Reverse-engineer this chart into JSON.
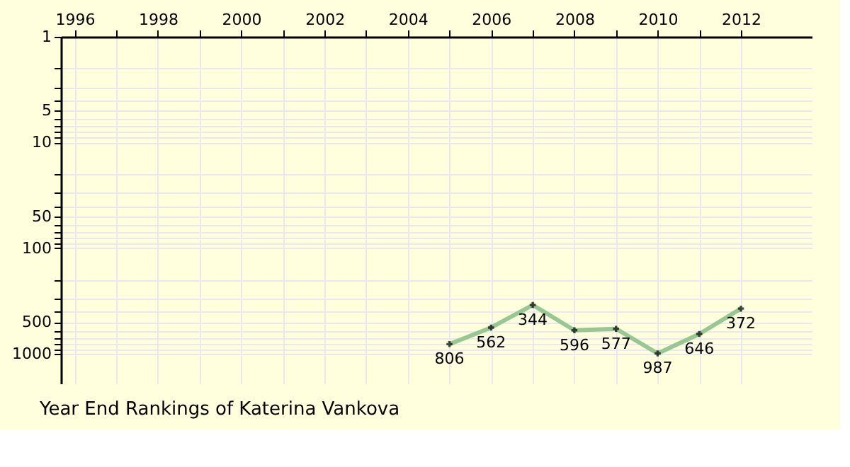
{
  "chart_data": {
    "type": "line",
    "title": "Year End Rankings of Katerina Vankova",
    "x": [
      2005,
      2006,
      2007,
      2008,
      2009,
      2010,
      2011,
      2012
    ],
    "series": [
      {
        "color": "#99c794",
        "values": [
          806,
          562,
          344,
          596,
          577,
          987,
          646,
          372
        ]
      }
    ],
    "data_labels": true,
    "marker": "cross",
    "line_style": "solid",
    "log": "y",
    "grid": true,
    "xlim": [
      1995.67,
      2013.7
    ],
    "ylim": [
      1900,
      1
    ],
    "xticks": [
      1996,
      {
        "value": 1997,
        "label": null
      },
      1998,
      {
        "value": 1999,
        "label": null
      },
      2000,
      {
        "value": 2001,
        "label": null
      },
      2002,
      {
        "value": 2003,
        "label": null
      },
      2004,
      {
        "value": 2005,
        "label": null
      },
      2006,
      {
        "value": 2007,
        "label": null
      },
      2008,
      {
        "value": 2009,
        "label": null
      },
      2010,
      {
        "value": 2011,
        "label": null
      },
      2012
    ],
    "yticks": [
      1,
      {
        "value": 2,
        "label": null
      },
      {
        "value": 3,
        "label": null
      },
      {
        "value": 4,
        "label": null
      },
      5,
      {
        "value": 6,
        "label": null
      },
      {
        "value": 7,
        "label": null
      },
      {
        "value": 8,
        "label": null
      },
      {
        "value": 9,
        "label": null
      },
      10,
      {
        "value": 20,
        "label": null
      },
      {
        "value": 30,
        "label": null
      },
      {
        "value": 40,
        "label": null
      },
      50,
      {
        "value": 60,
        "label": null
      },
      {
        "value": 70,
        "label": null
      },
      {
        "value": 80,
        "label": null
      },
      {
        "value": 90,
        "label": null
      },
      100,
      {
        "value": 200,
        "label": null
      },
      {
        "value": 300,
        "label": null
      },
      {
        "value": 400,
        "label": null
      },
      500,
      {
        "value": 600,
        "label": null
      },
      {
        "value": 700,
        "label": null
      },
      {
        "value": 800,
        "label": null
      },
      {
        "value": 900,
        "label": null
      },
      1000
    ]
  }
}
